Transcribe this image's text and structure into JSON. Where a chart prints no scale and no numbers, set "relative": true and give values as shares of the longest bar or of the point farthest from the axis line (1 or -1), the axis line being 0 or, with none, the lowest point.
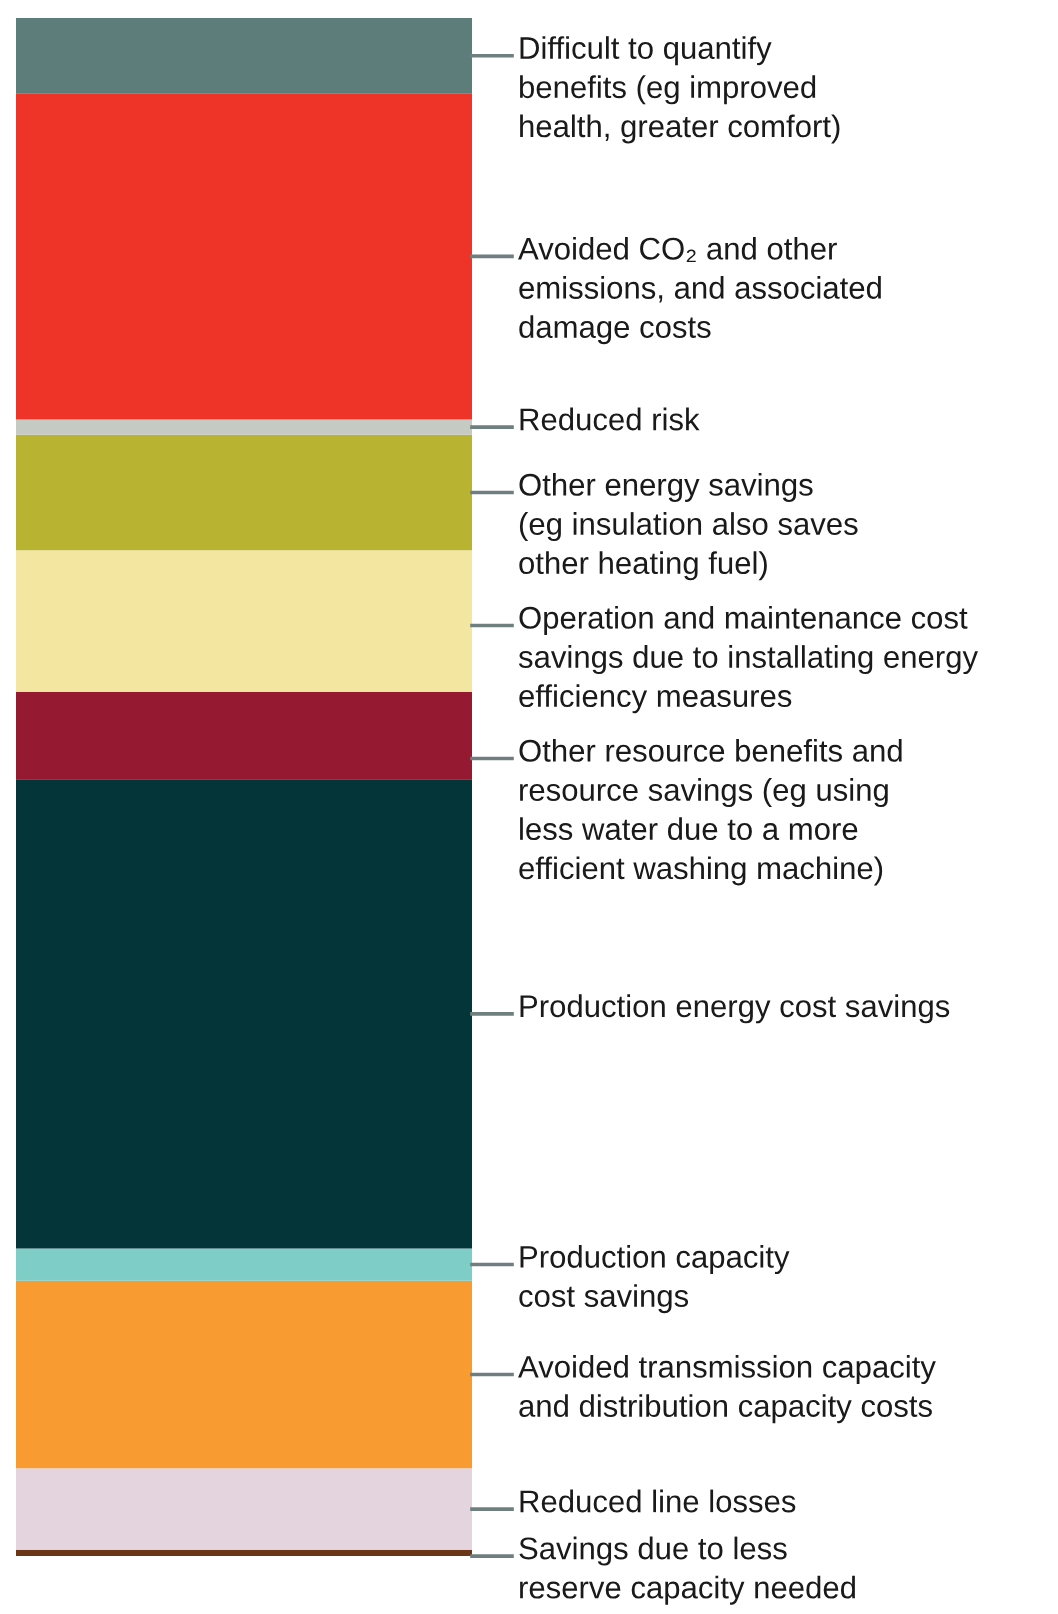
{
  "chart_data": {
    "type": "bar",
    "stacked": true,
    "relative": true,
    "categories": [
      null
    ],
    "series": [
      {
        "name": "Savings due to less\nreserve capacity needed",
        "color": "#6b3518",
        "values": [
          0.004
        ]
      },
      {
        "name": "Reduced line losses",
        "color": "#e4d4de",
        "values": [
          0.053
        ]
      },
      {
        "name": "Avoided transmission capacity\nand distribution capacity costs",
        "color": "#f89c32",
        "values": [
          0.122
        ]
      },
      {
        "name": "Production capacity\ncost savings",
        "color": "#7ecec7",
        "values": [
          0.021
        ]
      },
      {
        "name": "Production energy cost savings",
        "color": "#033539",
        "values": [
          0.305
        ]
      },
      {
        "name": "Other resource benefits and\nresource savings (eg using\nless water due to a more\nefficient washing machine)",
        "color": "#961932",
        "values": [
          0.057
        ]
      },
      {
        "name": "Operation and maintenance cost\nsavings due to installating energy\nefficiency measures",
        "color": "#f3e6a1",
        "values": [
          0.092
        ]
      },
      {
        "name": "Other energy savings\n(eg insulation also saves\nother heating fuel)",
        "color": "#b8b432",
        "values": [
          0.075
        ]
      },
      {
        "name": "Reduced risk",
        "color": "#c5cac2",
        "values": [
          0.01
        ]
      },
      {
        "name": "Avoided CO₂ and other\nemissions, and associated\ndamage costs",
        "color": "#ee3428",
        "values": [
          0.212
        ]
      },
      {
        "name": "Difficult to quantify\nbenefits (eg improved\nhealth, greater comfort)",
        "color": "#5d7d7b",
        "values": [
          0.049
        ]
      }
    ]
  }
}
